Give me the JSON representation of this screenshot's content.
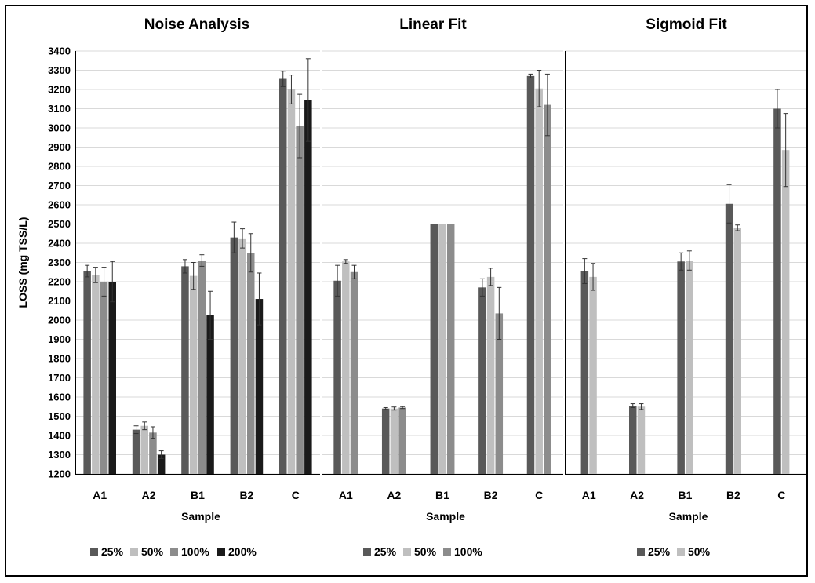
{
  "chart_data": [
    {
      "type": "bar",
      "title": "Noise Analysis",
      "xlabel": "Sample",
      "ylabel": "LOSS (mg TSS/L)",
      "ylim": [
        1200,
        3400
      ],
      "ytick_step": 100,
      "grid": true,
      "legend_position": "bottom",
      "categories": [
        "A1",
        "A2",
        "B1",
        "B2",
        "C"
      ],
      "series": [
        {
          "name": "25%",
          "color": "#595959",
          "values": [
            2255,
            1430,
            2280,
            2430,
            3255
          ],
          "errors": [
            30,
            20,
            35,
            80,
            40
          ]
        },
        {
          "name": "50%",
          "color": "#bfbfbf",
          "values": [
            2235,
            1450,
            2230,
            2425,
            3200
          ],
          "errors": [
            40,
            20,
            70,
            50,
            75
          ]
        },
        {
          "name": "100%",
          "color": "#8c8c8c",
          "values": [
            2200,
            1415,
            2310,
            2350,
            3010
          ],
          "errors": [
            75,
            30,
            30,
            100,
            165
          ]
        },
        {
          "name": "200%",
          "color": "#1a1a1a",
          "values": [
            2200,
            1300,
            2025,
            2110,
            3145
          ],
          "errors": [
            105,
            20,
            125,
            135,
            215
          ]
        }
      ]
    },
    {
      "type": "bar",
      "title": "Linear Fit",
      "xlabel": "Sample",
      "ylabel": "",
      "ylim": [
        1200,
        3400
      ],
      "grid": true,
      "legend_position": "bottom",
      "categories": [
        "A1",
        "A2",
        "B1",
        "B2",
        "C"
      ],
      "series": [
        {
          "name": "25%",
          "color": "#595959",
          "values": [
            2205,
            1540,
            2500,
            2170,
            3270
          ],
          "errors": [
            80,
            5,
            0,
            45,
            10
          ]
        },
        {
          "name": "50%",
          "color": "#bfbfbf",
          "values": [
            2305,
            1540,
            2500,
            2225,
            3205
          ],
          "errors": [
            10,
            8,
            0,
            45,
            95
          ]
        },
        {
          "name": "100%",
          "color": "#8c8c8c",
          "values": [
            2250,
            1545,
            2500,
            2035,
            3120
          ],
          "errors": [
            35,
            5,
            0,
            135,
            160
          ]
        }
      ]
    },
    {
      "type": "bar",
      "title": "Sigmoid Fit",
      "xlabel": "Sample",
      "ylabel": "",
      "ylim": [
        1200,
        3400
      ],
      "grid": true,
      "legend_position": "bottom",
      "categories": [
        "A1",
        "A2",
        "B1",
        "B2",
        "C"
      ],
      "series": [
        {
          "name": "25%",
          "color": "#595959",
          "values": [
            2255,
            1555,
            2305,
            2605,
            3100
          ],
          "errors": [
            65,
            10,
            45,
            100,
            100
          ]
        },
        {
          "name": "50%",
          "color": "#bfbfbf",
          "values": [
            2225,
            1550,
            2310,
            2480,
            2885
          ],
          "errors": [
            70,
            15,
            50,
            15,
            190
          ]
        }
      ]
    }
  ]
}
